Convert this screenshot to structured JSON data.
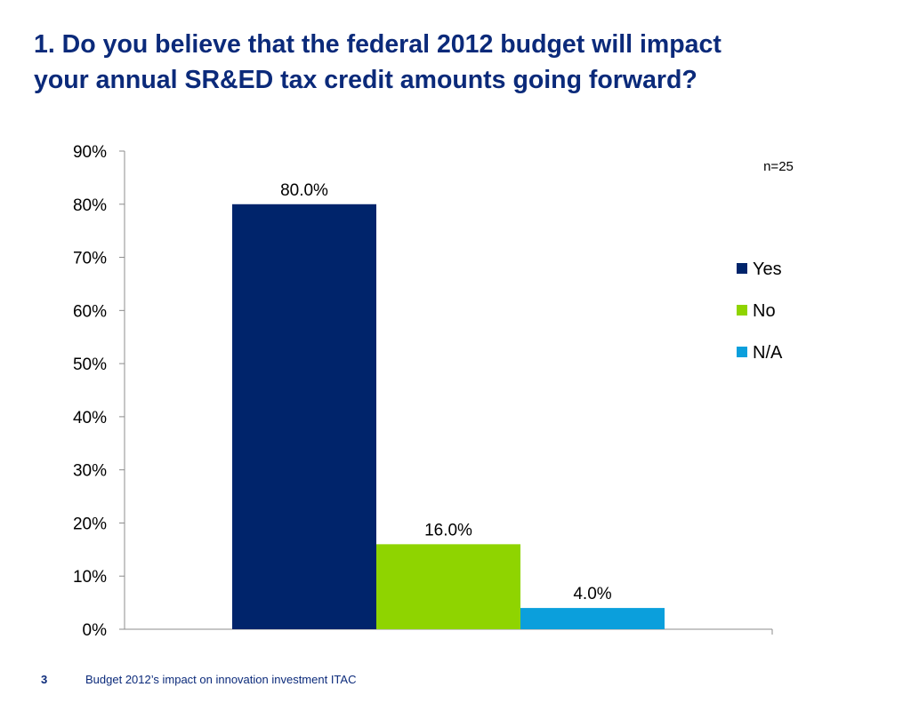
{
  "slide": {
    "title_line1": "1. Do you believe that the federal 2012 budget will impact",
    "title_line2": "your annual SR&ED tax credit amounts going forward?",
    "sample_size": "n=25",
    "footer_page": "3",
    "footer_text": "Budget 2012’s impact on innovation investment ITAC"
  },
  "chart_data": {
    "type": "bar",
    "title": "",
    "xlabel": "",
    "ylabel": "",
    "ylim": [
      0,
      90
    ],
    "yticks": [
      0,
      10,
      20,
      30,
      40,
      50,
      60,
      70,
      80,
      90
    ],
    "ytick_labels": [
      "0%",
      "10%",
      "20%",
      "30%",
      "40%",
      "50%",
      "60%",
      "70%",
      "80%",
      "90%"
    ],
    "grid": false,
    "legend_position": "right",
    "series": [
      {
        "name": "Yes",
        "value": 80.0,
        "label": "80.0%",
        "color": "#00246b"
      },
      {
        "name": "No",
        "value": 16.0,
        "label": "16.0%",
        "color": "#8fd400"
      },
      {
        "name": "N/A",
        "value": 4.0,
        "label": "4.0%",
        "color": "#0b9fdc"
      }
    ]
  }
}
